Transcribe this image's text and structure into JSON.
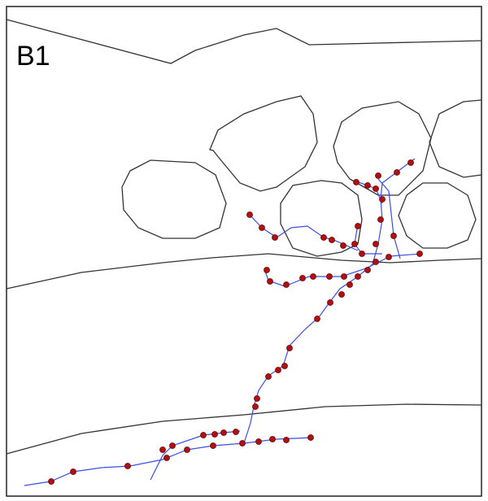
{
  "panel_label": "B1"
}
